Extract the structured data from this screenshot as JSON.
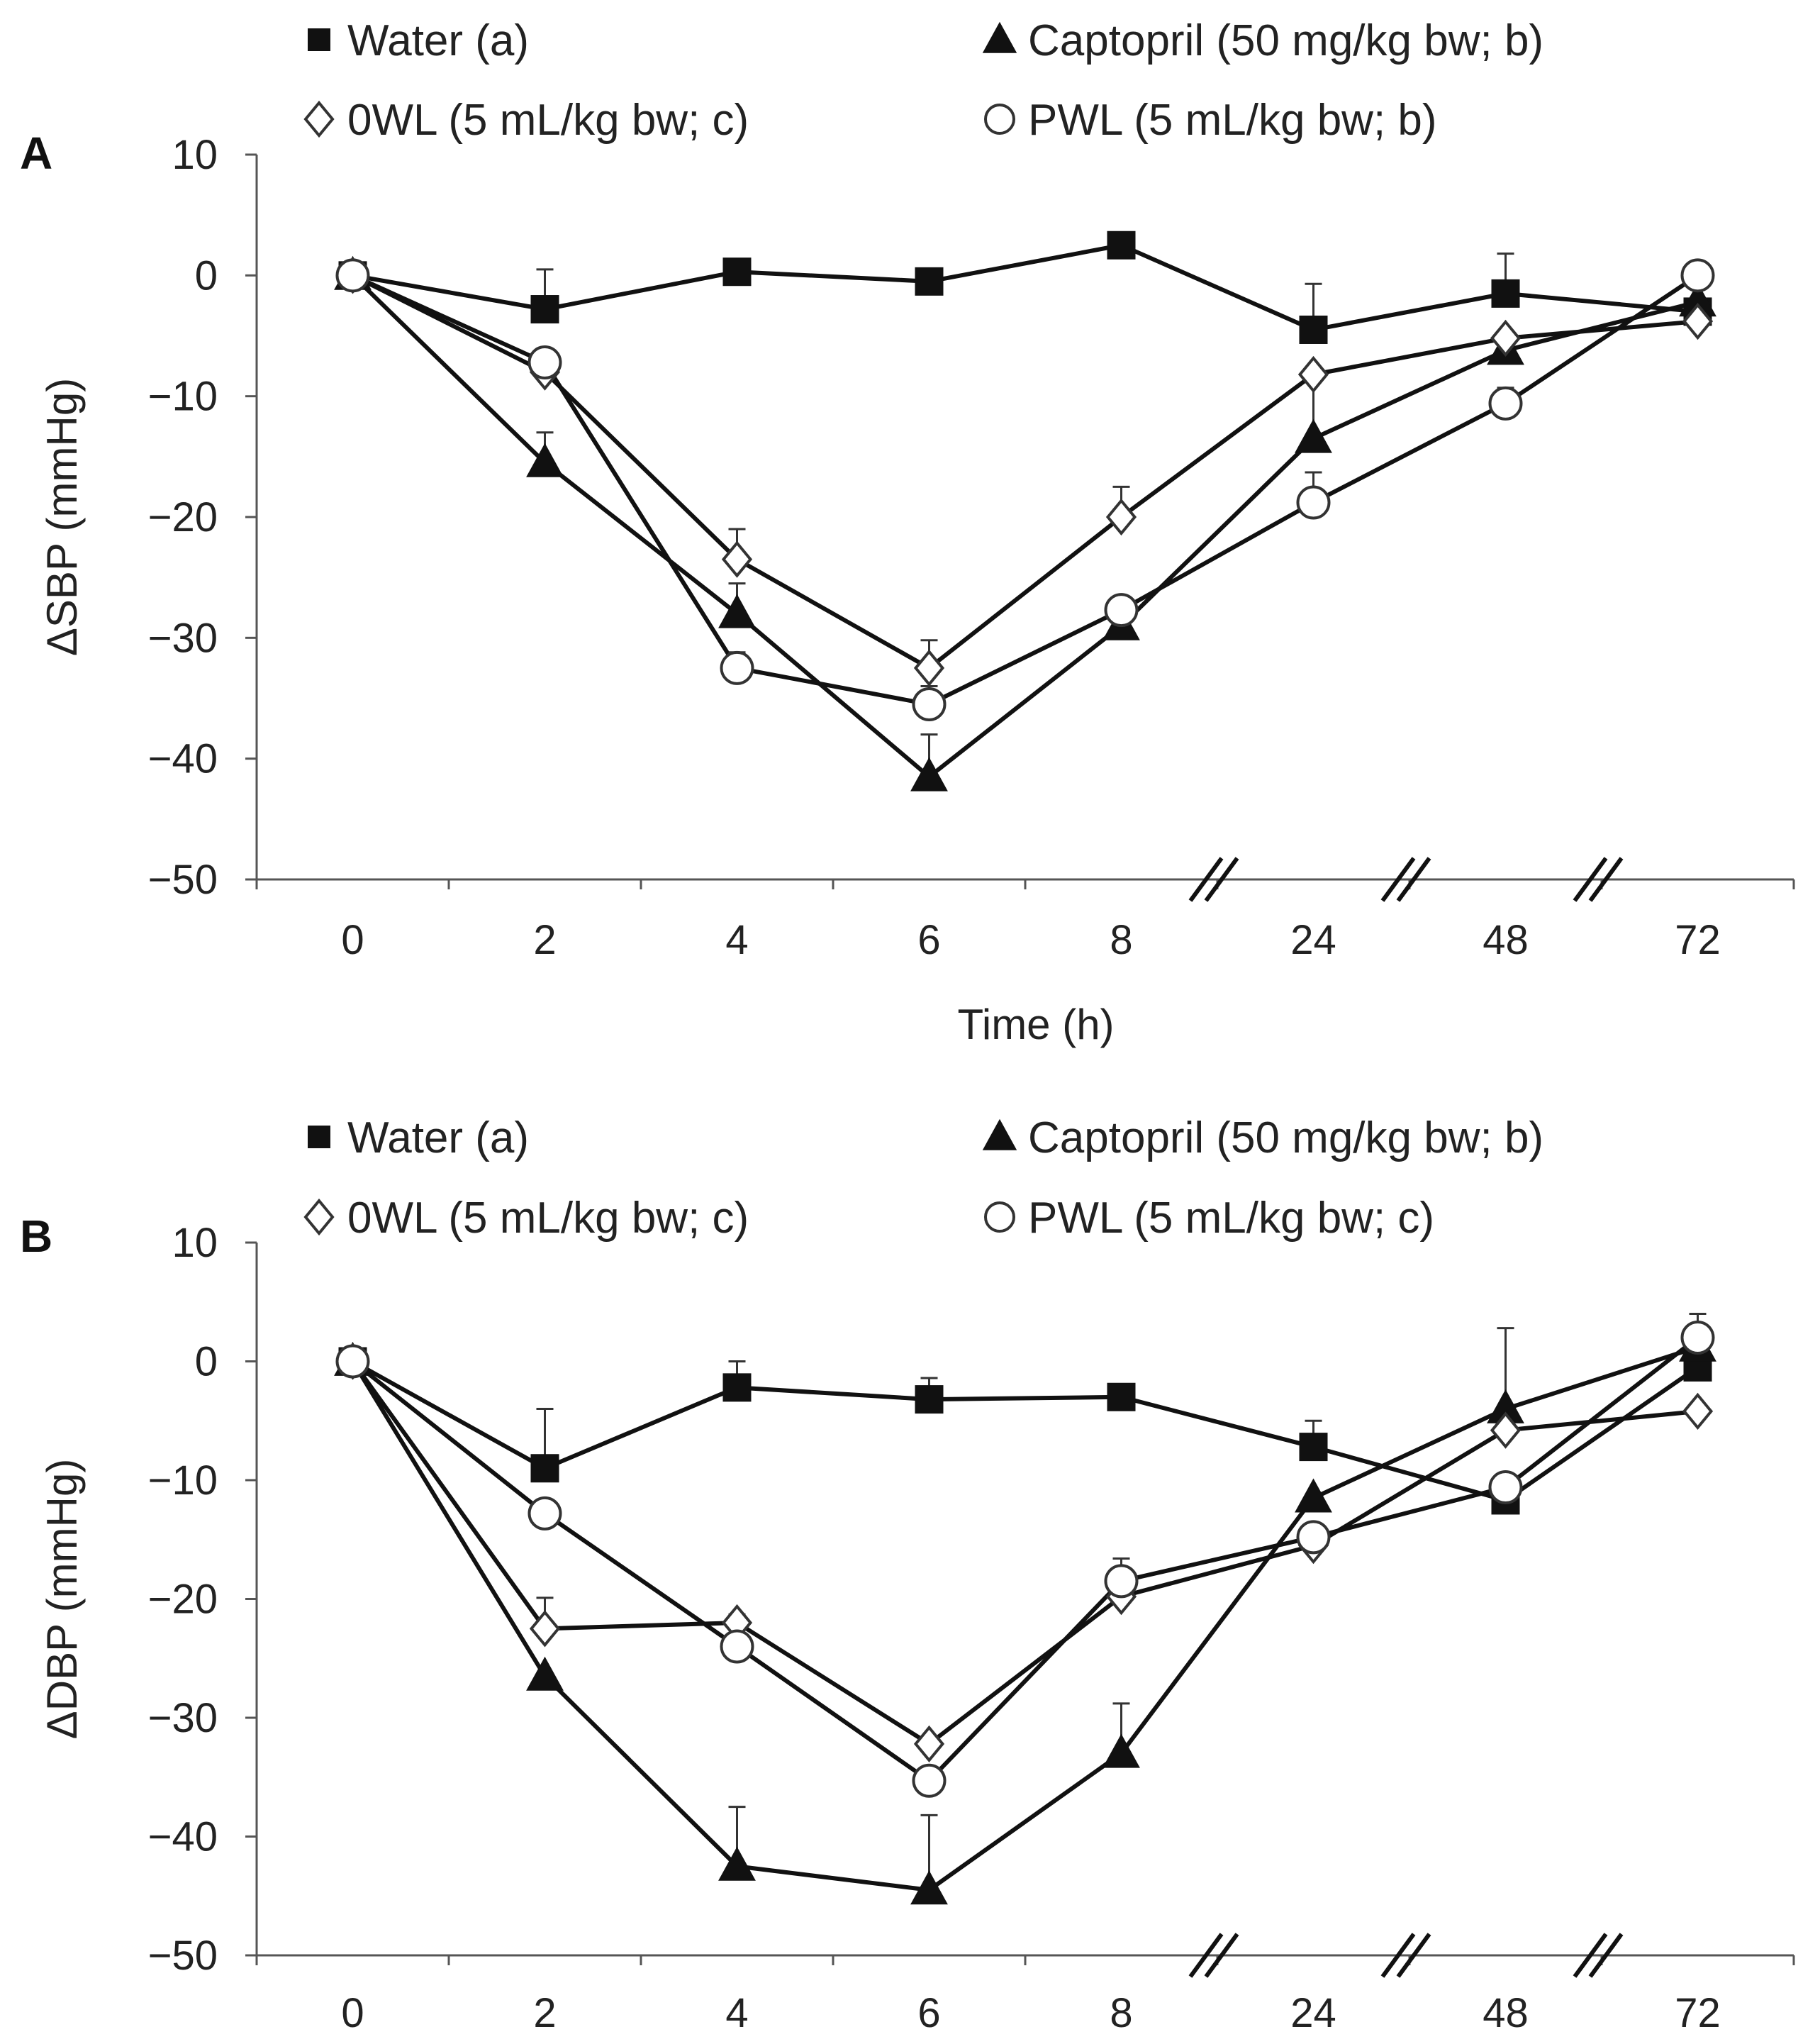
{
  "chart_data": [
    {
      "type": "line",
      "panel_label": "A",
      "title": "",
      "xlabel": "Time (h)",
      "ylabel": "ΔSBP (mmHg)",
      "categories": [
        "0",
        "2",
        "4",
        "6",
        "8",
        "24",
        "48",
        "72"
      ],
      "ylim": [
        -50,
        10
      ],
      "yticks": [
        "10",
        "0",
        "−10",
        "−20",
        "−30",
        "−40",
        "−50"
      ],
      "axis_breaks_after_category_index": [
        4,
        5,
        6
      ],
      "series": [
        {
          "name": "Water (a)",
          "marker": "filled-square",
          "values": [
            0,
            -2.8,
            0.3,
            -0.5,
            2.5,
            -4.5,
            -1.5,
            -3
          ],
          "errors": [
            0,
            3.3,
            0,
            0,
            0,
            3.8,
            3.3,
            0
          ]
        },
        {
          "name": "Captopril (50 mg/kg bw; b)",
          "marker": "filled-triangle",
          "values": [
            0,
            -15.5,
            -28,
            -41.5,
            -29,
            -13.5,
            -6.2,
            -2.2
          ],
          "errors": [
            0,
            2.5,
            2.5,
            3.5,
            0,
            5.5,
            0,
            0
          ]
        },
        {
          "name": "0WL (5 mL/kg bw; c)",
          "marker": "open-diamond",
          "values": [
            0,
            -8,
            -23.5,
            -32.5,
            -20,
            -8.2,
            -5.2,
            -3.8
          ],
          "errors": [
            0,
            0,
            2.5,
            2.3,
            2.5,
            0,
            0,
            0
          ]
        },
        {
          "name": "PWL (5 mL/kg bw; b)",
          "marker": "open-circle",
          "values": [
            0,
            -7.2,
            -32.5,
            -35.5,
            -27.7,
            -18.8,
            -10.6,
            0
          ],
          "errors": [
            0,
            0,
            1.3,
            1.5,
            0,
            2.5,
            1.3,
            0
          ]
        }
      ]
    },
    {
      "type": "line",
      "panel_label": "B",
      "title": "",
      "xlabel": "",
      "ylabel": "ΔDBP (mmHg)",
      "categories": [
        "0",
        "2",
        "4",
        "6",
        "8",
        "24",
        "48",
        "72"
      ],
      "ylim": [
        -50,
        10
      ],
      "yticks": [
        "10",
        "0",
        "−10",
        "−20",
        "−30",
        "−40",
        "−50"
      ],
      "axis_breaks_after_category_index": [
        4,
        5,
        6
      ],
      "series": [
        {
          "name": "Water (a)",
          "marker": "filled-square",
          "values": [
            0,
            -9,
            -2.2,
            -3.2,
            -3,
            -7.2,
            -11.7,
            -0.5
          ],
          "errors": [
            0,
            5,
            2.2,
            1.8,
            0,
            2.2,
            0,
            0
          ]
        },
        {
          "name": "Captopril (50 mg/kg bw; b)",
          "marker": "filled-triangle",
          "values": [
            0,
            -26.5,
            -42.5,
            -44.5,
            -33,
            -11.5,
            -4,
            1.2
          ],
          "errors": [
            0,
            0,
            5,
            6.3,
            4.2,
            0,
            6.8,
            0
          ]
        },
        {
          "name": "0WL (5 mL/kg bw; c)",
          "marker": "open-diamond",
          "values": [
            0,
            -22.5,
            -22,
            -32.2,
            -19.8,
            -15.5,
            -5.8,
            -4.2
          ],
          "errors": [
            0,
            2.6,
            0.7,
            0,
            3.2,
            0,
            0,
            0
          ]
        },
        {
          "name": "PWL (5 mL/kg bw; c)",
          "marker": "open-circle",
          "values": [
            0,
            -12.8,
            -24,
            -35.3,
            -18.5,
            -14.8,
            -10.6,
            2
          ],
          "errors": [
            0,
            0,
            0,
            0,
            0,
            0,
            0,
            2
          ]
        }
      ]
    }
  ]
}
